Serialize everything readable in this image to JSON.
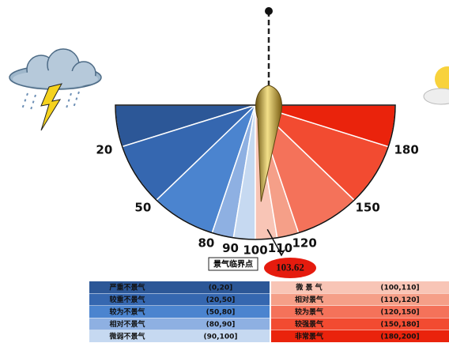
{
  "chart_data": {
    "type": "gauge",
    "value": 103.62,
    "annotation": "景气临界点",
    "lim": [
      0,
      200
    ],
    "ticks": [
      20,
      50,
      80,
      90,
      100,
      110,
      120,
      150,
      180
    ],
    "bands": [
      {
        "name": "严重不景气",
        "range": "(0,20]",
        "from": 0,
        "to": 20,
        "color": "#2c5797"
      },
      {
        "name": "较重不景气",
        "range": "(20,50]",
        "from": 20,
        "to": 50,
        "color": "#3567b0"
      },
      {
        "name": "较为不景气",
        "range": "(50,80]",
        "from": 50,
        "to": 80,
        "color": "#4b84cf"
      },
      {
        "name": "相对不景气",
        "range": "(80,90]",
        "from": 80,
        "to": 90,
        "color": "#8eb0e2"
      },
      {
        "name": "微弱不景气",
        "range": "(90,100]",
        "from": 90,
        "to": 100,
        "color": "#c6d9f1"
      },
      {
        "name": "微 景 气",
        "range": "(100,110]",
        "from": 100,
        "to": 110,
        "color": "#f8c5b6"
      },
      {
        "name": "相对景气",
        "range": "(110,120]",
        "from": 110,
        "to": 120,
        "color": "#f59f88"
      },
      {
        "name": "较为景气",
        "range": "(120,150]",
        "from": 120,
        "to": 150,
        "color": "#f4725a"
      },
      {
        "name": "较强景气",
        "range": "(150,180]",
        "from": 150,
        "to": 180,
        "color": "#f24b31"
      },
      {
        "name": "非常景气",
        "range": "(180,200]",
        "from": 180,
        "to": 200,
        "color": "#ea230c"
      }
    ]
  }
}
